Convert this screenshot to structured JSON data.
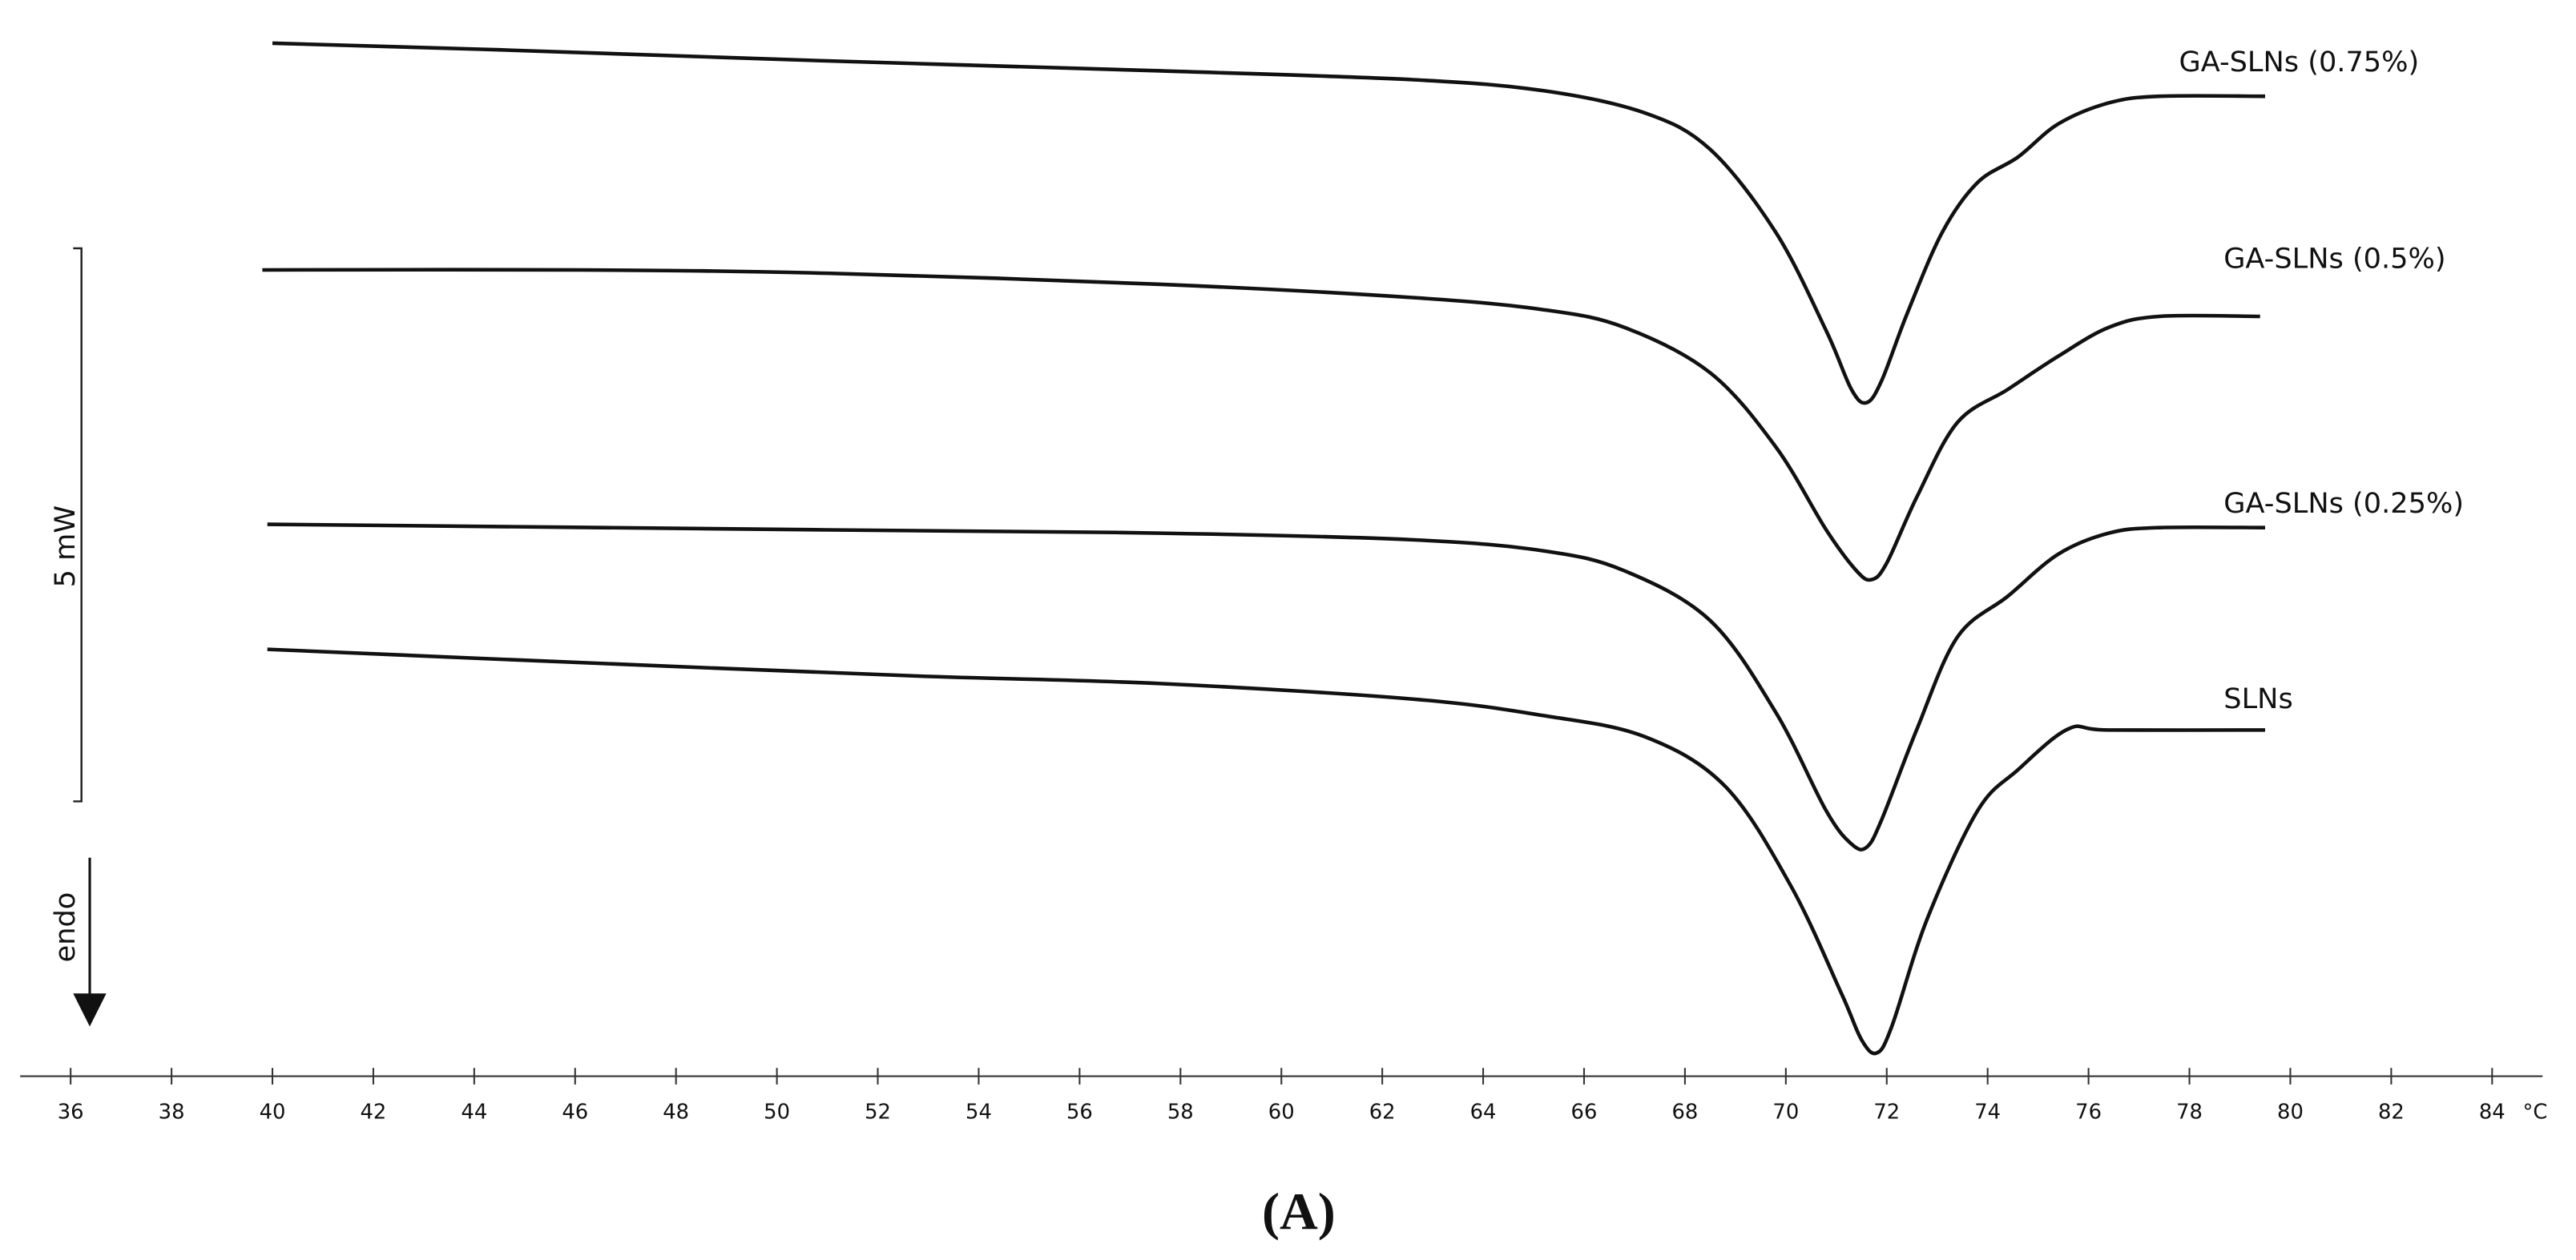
{
  "chart_data": {
    "type": "line",
    "caption": "(A)",
    "x_unit": "°C",
    "xlim": [
      35,
      85
    ],
    "xticks": [
      36,
      38,
      40,
      42,
      44,
      46,
      48,
      50,
      52,
      54,
      56,
      58,
      60,
      62,
      64,
      66,
      68,
      70,
      72,
      74,
      76,
      78,
      80,
      82,
      84
    ],
    "ylim": [
      0,
      9.5
    ],
    "scale_bar": {
      "label": "5 mW",
      "value": 5
    },
    "direction_label": "endo",
    "series": [
      {
        "name": "GA-SLNs (0.75%)",
        "color": "#111111",
        "x": [
          40.0,
          44.5,
          51.0,
          57.6,
          62.6,
          65.2,
          67.2,
          68.5,
          69.8,
          70.8,
          71.3,
          71.6,
          71.9,
          72.4,
          73.1,
          73.8,
          74.6,
          75.4,
          76.4,
          77.4,
          79.5
        ],
        "values": [
          9.34,
          9.28,
          9.18,
          9.09,
          9.01,
          8.91,
          8.71,
          8.38,
          7.63,
          6.74,
          6.21,
          6.09,
          6.29,
          6.89,
          7.63,
          8.08,
          8.31,
          8.61,
          8.8,
          8.86,
          8.86
        ]
      },
      {
        "name": "GA-SLNs (0.5%)",
        "color": "#111111",
        "x": [
          39.8,
          46.1,
          51.0,
          57.6,
          62.6,
          65.2,
          66.8,
          68.5,
          69.8,
          70.8,
          71.4,
          71.7,
          72.0,
          72.6,
          73.4,
          74.4,
          75.4,
          76.4,
          77.4,
          79.4
        ],
        "values": [
          7.29,
          7.29,
          7.26,
          7.16,
          7.04,
          6.93,
          6.77,
          6.36,
          5.69,
          4.94,
          4.57,
          4.49,
          4.64,
          5.24,
          5.91,
          6.21,
          6.51,
          6.77,
          6.87,
          6.87
        ]
      },
      {
        "name": "GA-SLNs (0.25%)",
        "color": "#111111",
        "x": [
          39.9,
          51.0,
          57.6,
          62.6,
          65.2,
          66.8,
          68.5,
          69.8,
          70.8,
          71.3,
          71.6,
          71.9,
          72.6,
          73.4,
          74.4,
          75.4,
          76.4,
          77.4,
          79.5
        ],
        "values": [
          4.99,
          4.94,
          4.91,
          4.85,
          4.75,
          4.57,
          4.12,
          3.29,
          2.4,
          2.1,
          2.07,
          2.32,
          3.14,
          3.97,
          4.34,
          4.72,
          4.91,
          4.96,
          4.96
        ]
      },
      {
        "name": "SLNs",
        "color": "#111111",
        "x": [
          39.9,
          46.1,
          52.7,
          57.6,
          62.6,
          65.2,
          67.2,
          68.8,
          70.1,
          71.1,
          71.5,
          71.8,
          72.1,
          72.8,
          73.8,
          74.6,
          75.6,
          76.4,
          79.5
        ],
        "values": [
          3.86,
          3.74,
          3.62,
          3.55,
          3.41,
          3.26,
          3.07,
          2.62,
          1.72,
          0.75,
          0.33,
          0.21,
          0.45,
          1.42,
          2.4,
          2.77,
          3.14,
          3.13,
          3.13
        ]
      }
    ]
  }
}
